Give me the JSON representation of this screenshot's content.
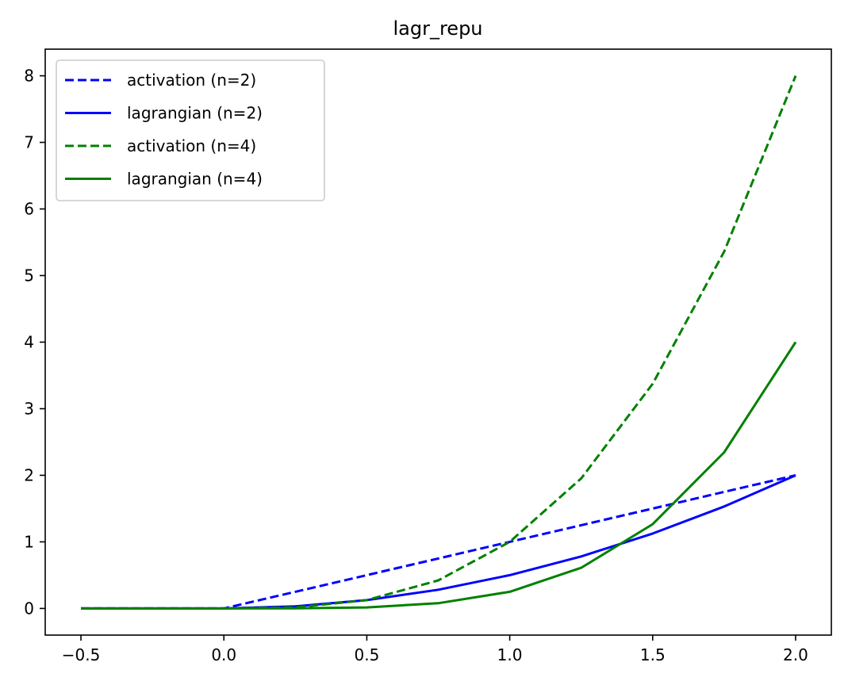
{
  "chart_data": {
    "type": "line",
    "title": "lagr_repu",
    "xlabel": "",
    "ylabel": "",
    "xlim": [
      -0.625,
      2.125
    ],
    "ylim": [
      -0.4,
      8.4
    ],
    "xticks": [
      -0.5,
      0.0,
      0.5,
      1.0,
      1.5,
      2.0
    ],
    "xtick_labels": [
      "−0.5",
      "0.0",
      "0.5",
      "1.0",
      "1.5",
      "2.0"
    ],
    "yticks": [
      0,
      1,
      2,
      3,
      4,
      5,
      6,
      7,
      8
    ],
    "ytick_labels": [
      "0",
      "1",
      "2",
      "3",
      "4",
      "5",
      "6",
      "7",
      "8"
    ],
    "grid": false,
    "legend_position": "top-left",
    "x": [
      -0.5,
      -0.25,
      0.0,
      0.25,
      0.5,
      0.75,
      1.0,
      1.25,
      1.5,
      1.75,
      2.0
    ],
    "series": [
      {
        "name": "activation (n=2)",
        "color": "#0000ff",
        "style": "dashed",
        "values": [
          0,
          0,
          0,
          0.25,
          0.5,
          0.75,
          1.0,
          1.25,
          1.5,
          1.75,
          2.0
        ]
      },
      {
        "name": "lagrangian (n=2)",
        "color": "#0000ff",
        "style": "solid",
        "values": [
          0,
          0,
          0,
          0.0313,
          0.125,
          0.2813,
          0.5,
          0.7813,
          1.125,
          1.5313,
          2.0
        ]
      },
      {
        "name": "activation (n=4)",
        "color": "#008000",
        "style": "dashed",
        "values": [
          0,
          0,
          0,
          0.0156,
          0.125,
          0.4219,
          1.0,
          1.9531,
          3.375,
          5.3594,
          8.0
        ]
      },
      {
        "name": "lagrangian (n=4)",
        "color": "#008000",
        "style": "solid",
        "values": [
          0,
          0,
          0,
          0.001,
          0.0156,
          0.0791,
          0.25,
          0.6104,
          1.2656,
          2.3447,
          4.0
        ]
      }
    ]
  }
}
